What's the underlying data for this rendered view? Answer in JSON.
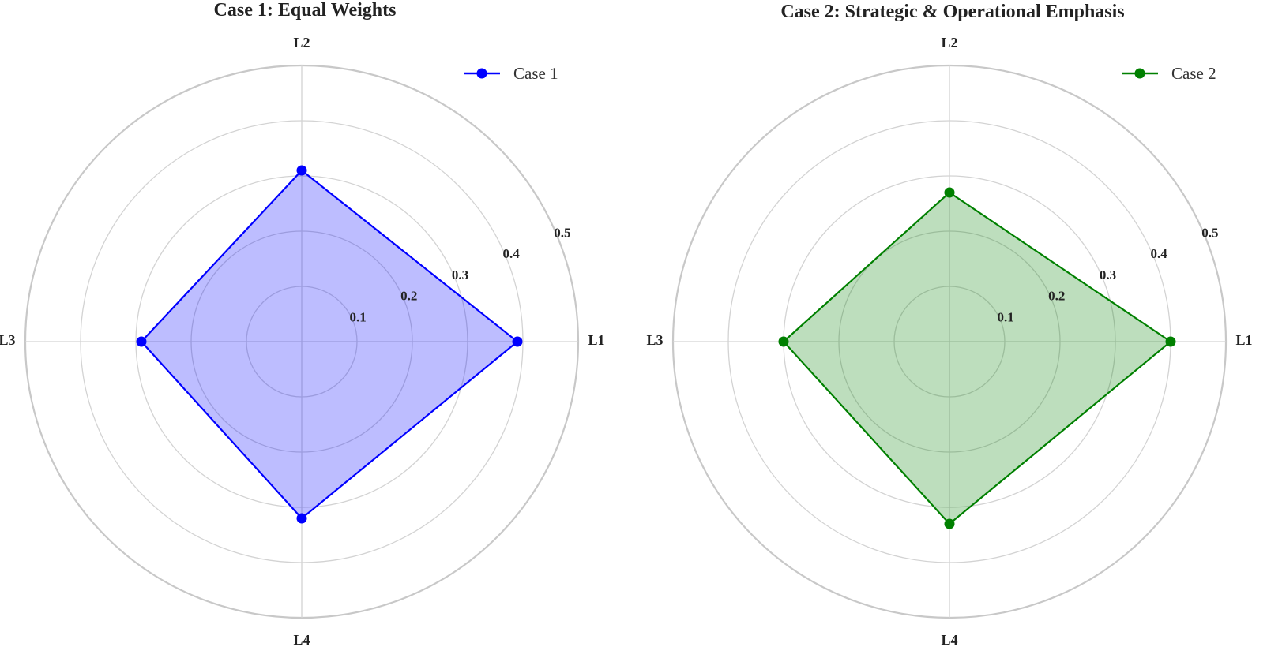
{
  "chart_data": [
    {
      "type": "radar",
      "title": "Case 1: Equal Weights",
      "axes": [
        "L1",
        "L2",
        "L3",
        "L4"
      ],
      "rticks": [
        "0.1",
        "0.2",
        "0.3",
        "0.4",
        "0.5"
      ],
      "rlim": [
        0,
        0.5
      ],
      "grid": true,
      "legend_position": "top-right",
      "series": [
        {
          "name": "Case 1",
          "values": [
            0.39,
            0.31,
            0.29,
            0.32
          ],
          "color": "#0000ff",
          "fill": "#0000ff"
        }
      ]
    },
    {
      "type": "radar",
      "title": "Case 2: Strategic & Operational Emphasis",
      "axes": [
        "L1",
        "L2",
        "L3",
        "L4"
      ],
      "rticks": [
        "0.1",
        "0.2",
        "0.3",
        "0.4",
        "0.5"
      ],
      "rlim": [
        0,
        0.5
      ],
      "grid": true,
      "legend_position": "top-right",
      "series": [
        {
          "name": "Case 2",
          "values": [
            0.4,
            0.27,
            0.3,
            0.33
          ],
          "color": "#008000",
          "fill": "#008000"
        }
      ]
    }
  ]
}
